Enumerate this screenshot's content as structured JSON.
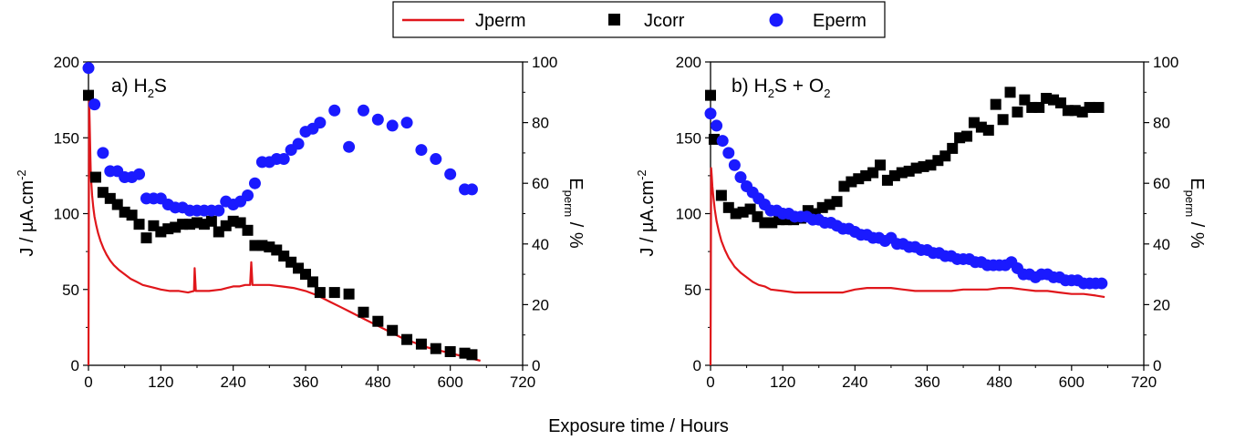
{
  "legend": {
    "items": [
      {
        "label": "Jperm",
        "marker": "line",
        "color": "#e0161b"
      },
      {
        "label": "Jcorr",
        "marker": "square",
        "color": "#000000"
      },
      {
        "label": "Eperm",
        "marker": "circle",
        "color": "#1a1aff"
      }
    ]
  },
  "xlabel": "Exposure time / Hours",
  "colors": {
    "jperm": "#e0161b",
    "jcorr": "#000000",
    "eperm": "#1a1aff"
  },
  "chart_data": [
    {
      "type": "scatter",
      "title_main": "a) H",
      "title_sub": "2",
      "title_rest": "S",
      "ylabel_left": "J / µA.cm",
      "ylabel_left_sup": "-2",
      "ylabel_right_main": "E",
      "ylabel_right_sub": "perm",
      "ylabel_right_rest": " / %",
      "xlim": [
        0,
        720
      ],
      "ylim_left": [
        0,
        200
      ],
      "ylim_right": [
        0,
        100
      ],
      "x_ticks": [
        "0",
        "120",
        "240",
        "360",
        "480",
        "600",
        "720"
      ],
      "y_left_ticks": [
        "0",
        "50",
        "100",
        "150",
        "200"
      ],
      "y_right_ticks": [
        "0",
        "20",
        "40",
        "60",
        "80",
        "100"
      ],
      "series": [
        {
          "name": "Jperm",
          "kind": "line",
          "axis": "left",
          "x": [
            0,
            1,
            2,
            3,
            4,
            6,
            8,
            10,
            13,
            16,
            20,
            25,
            30,
            36,
            42,
            50,
            60,
            70,
            80,
            90,
            100,
            110,
            120,
            135,
            150,
            165,
            175,
            176,
            178,
            185,
            200,
            220,
            230,
            240,
            250,
            260,
            268,
            270,
            272,
            280,
            300,
            320,
            340,
            360,
            380,
            400,
            420,
            440,
            460,
            480,
            500,
            520,
            540,
            560,
            580,
            600,
            620,
            640,
            650
          ],
          "y": [
            0,
            175,
            160,
            140,
            125,
            112,
            104,
            98,
            92,
            87,
            82,
            77,
            73,
            69,
            66,
            63,
            60,
            57,
            55,
            53,
            52,
            51,
            50,
            49,
            49,
            48,
            49,
            64,
            49,
            49,
            49,
            50,
            51,
            52,
            52,
            53,
            53,
            68,
            53,
            53,
            53,
            52,
            51,
            49,
            46,
            42,
            38,
            34,
            30,
            26,
            22,
            18,
            15,
            12,
            10,
            8,
            6,
            4,
            3
          ]
        },
        {
          "name": "Jcorr",
          "kind": "square",
          "axis": "left",
          "x": [
            0,
            12,
            24,
            36,
            48,
            60,
            72,
            84,
            96,
            108,
            120,
            132,
            144,
            156,
            168,
            180,
            192,
            204,
            216,
            228,
            240,
            252,
            264,
            276,
            288,
            300,
            312,
            324,
            336,
            348,
            360,
            372,
            384,
            408,
            432,
            456,
            480,
            504,
            528,
            552,
            576,
            600,
            624,
            636
          ],
          "y": [
            178,
            124,
            114,
            110,
            106,
            101,
            99,
            93,
            84,
            92,
            88,
            90,
            91,
            93,
            93,
            94,
            93,
            95,
            88,
            92,
            95,
            94,
            89,
            79,
            79,
            78,
            76,
            72,
            68,
            64,
            60,
            55,
            48,
            48,
            47,
            35,
            29,
            23,
            17,
            14,
            11,
            9,
            8,
            7
          ]
        },
        {
          "name": "Eperm",
          "kind": "circle",
          "axis": "right",
          "x": [
            0,
            10,
            24,
            36,
            48,
            60,
            72,
            84,
            96,
            108,
            120,
            132,
            144,
            156,
            168,
            180,
            192,
            204,
            216,
            228,
            240,
            252,
            264,
            276,
            288,
            300,
            312,
            324,
            336,
            348,
            360,
            372,
            384,
            408,
            432,
            456,
            480,
            504,
            528,
            552,
            576,
            600,
            624,
            636
          ],
          "y": [
            98,
            86,
            70,
            64,
            64,
            62,
            62,
            63,
            55,
            55,
            55,
            53,
            52,
            52,
            51,
            51,
            51,
            51,
            51,
            54,
            53,
            54,
            56,
            60,
            67,
            67,
            68,
            68,
            71,
            73,
            77,
            78,
            80,
            84,
            72,
            84,
            81,
            79,
            80,
            71,
            68,
            63,
            58,
            58
          ]
        }
      ]
    },
    {
      "type": "scatter",
      "title_main": "b) H",
      "title_sub": "2",
      "title_rest": "S + O",
      "title_sub2": "2",
      "ylabel_left": "J / µA.cm",
      "ylabel_left_sup": "-2",
      "ylabel_right_main": "E",
      "ylabel_right_sub": "perm",
      "ylabel_right_rest": " / %",
      "xlim": [
        0,
        720
      ],
      "ylim_left": [
        0,
        200
      ],
      "ylim_right": [
        0,
        100
      ],
      "x_ticks": [
        "0",
        "120",
        "240",
        "360",
        "480",
        "600",
        "720"
      ],
      "y_left_ticks": [
        "0",
        "50",
        "100",
        "150",
        "200"
      ],
      "y_right_ticks": [
        "0",
        "20",
        "40",
        "60",
        "80",
        "100"
      ],
      "series": [
        {
          "name": "Jperm",
          "kind": "line",
          "axis": "left",
          "x": [
            0,
            1,
            2,
            3,
            5,
            7,
            10,
            14,
            18,
            24,
            30,
            40,
            50,
            60,
            70,
            80,
            90,
            100,
            120,
            140,
            160,
            180,
            200,
            220,
            240,
            260,
            280,
            300,
            320,
            340,
            360,
            380,
            400,
            420,
            440,
            460,
            480,
            500,
            520,
            540,
            560,
            580,
            600,
            620,
            640,
            655
          ],
          "y": [
            0,
            130,
            125,
            118,
            110,
            103,
            95,
            88,
            82,
            76,
            71,
            65,
            61,
            58,
            55,
            53,
            52,
            50,
            49,
            48,
            48,
            48,
            48,
            48,
            50,
            51,
            51,
            51,
            50,
            49,
            49,
            49,
            49,
            50,
            50,
            50,
            51,
            51,
            50,
            49,
            49,
            48,
            47,
            47,
            46,
            45
          ]
        },
        {
          "name": "Jcorr",
          "kind": "square",
          "axis": "left",
          "x": [
            0,
            6,
            18,
            30,
            42,
            54,
            66,
            78,
            90,
            102,
            114,
            126,
            138,
            150,
            162,
            174,
            186,
            198,
            210,
            222,
            234,
            246,
            258,
            270,
            282,
            294,
            306,
            318,
            330,
            342,
            354,
            366,
            378,
            390,
            402,
            414,
            426,
            438,
            450,
            462,
            474,
            486,
            498,
            510,
            522,
            534,
            546,
            558,
            570,
            582,
            594,
            606,
            618,
            630,
            645
          ],
          "y": [
            178,
            149,
            112,
            104,
            100,
            101,
            103,
            98,
            94,
            94,
            96,
            96,
            96,
            97,
            102,
            100,
            104,
            106,
            108,
            118,
            121,
            123,
            125,
            127,
            132,
            122,
            125,
            127,
            128,
            130,
            131,
            132,
            135,
            138,
            143,
            150,
            151,
            160,
            157,
            155,
            172,
            162,
            180,
            167,
            175,
            170,
            170,
            176,
            175,
            173,
            168,
            168,
            167,
            170,
            170
          ]
        },
        {
          "name": "Eperm",
          "kind": "circle",
          "axis": "right",
          "x": [
            0,
            10,
            20,
            30,
            40,
            50,
            60,
            70,
            80,
            90,
            100,
            110,
            120,
            130,
            140,
            150,
            160,
            170,
            180,
            190,
            200,
            210,
            220,
            230,
            240,
            250,
            260,
            270,
            280,
            290,
            300,
            310,
            320,
            330,
            340,
            350,
            360,
            370,
            380,
            390,
            400,
            410,
            420,
            430,
            440,
            450,
            460,
            470,
            480,
            490,
            500,
            510,
            520,
            530,
            540,
            550,
            560,
            570,
            580,
            590,
            600,
            610,
            620,
            630,
            640,
            650
          ],
          "y": [
            83,
            79,
            74,
            70,
            66,
            62,
            59,
            57,
            55,
            53,
            51,
            51,
            50,
            50,
            49,
            49,
            49,
            48,
            48,
            47,
            47,
            46,
            45,
            45,
            44,
            43,
            43,
            42,
            42,
            41,
            42,
            40,
            40,
            39,
            39,
            38,
            38,
            37,
            37,
            36,
            36,
            35,
            35,
            35,
            34,
            34,
            33,
            33,
            33,
            33,
            34,
            32,
            30,
            30,
            29,
            30,
            30,
            29,
            29,
            28,
            28,
            28,
            27,
            27,
            27,
            27
          ]
        }
      ]
    }
  ]
}
